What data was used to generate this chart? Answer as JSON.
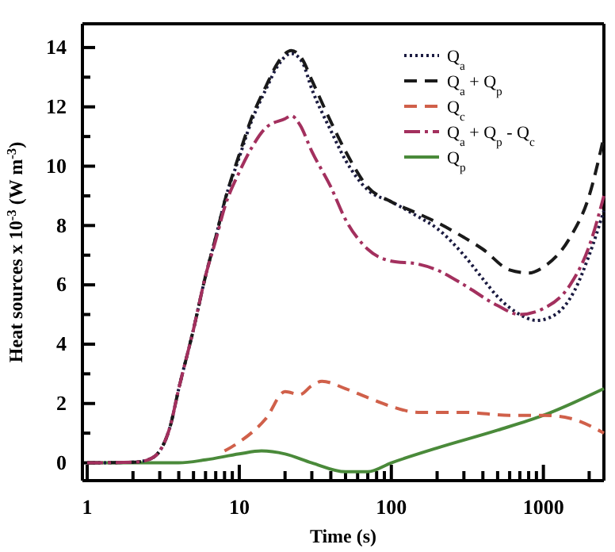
{
  "chart_data": {
    "type": "line",
    "xlabel": "Time (s)",
    "ylabel": "Heat sources x 10$^{-3}$ (W m$^{-3}$)",
    "log": "x",
    "legend": "top right",
    "grid": false,
    "xlim": [
      0.93,
      2500
    ],
    "ylim": [
      -0.6,
      14.8
    ],
    "xticks": [
      1,
      {
        "value": 2,
        "label": null
      },
      {
        "value": 3,
        "label": null
      },
      {
        "value": 4,
        "label": null
      },
      {
        "value": 5,
        "label": null
      },
      {
        "value": 6,
        "label": null
      },
      {
        "value": 7,
        "label": null
      },
      {
        "value": 8,
        "label": null
      },
      {
        "value": 9,
        "label": null
      },
      10,
      {
        "value": 20,
        "label": null
      },
      {
        "value": 30,
        "label": null
      },
      {
        "value": 40,
        "label": null
      },
      {
        "value": 50,
        "label": null
      },
      {
        "value": 60,
        "label": null
      },
      {
        "value": 70,
        "label": null
      },
      {
        "value": 80,
        "label": null
      },
      {
        "value": 90,
        "label": null
      },
      100,
      {
        "value": 200,
        "label": null
      },
      {
        "value": 300,
        "label": null
      },
      {
        "value": 400,
        "label": null
      },
      {
        "value": 500,
        "label": null
      },
      {
        "value": 600,
        "label": null
      },
      {
        "value": 700,
        "label": null
      },
      {
        "value": 800,
        "label": null
      },
      {
        "value": 900,
        "label": null
      },
      1000,
      {
        "value": 2000,
        "label": null
      }
    ],
    "yticks": [
      0,
      {
        "value": 1,
        "label": null
      },
      2,
      {
        "value": 3,
        "label": null
      },
      4,
      {
        "value": 5,
        "label": null
      },
      6,
      {
        "value": 7,
        "label": null
      },
      8,
      {
        "value": 9,
        "label": null
      },
      10,
      {
        "value": 11,
        "label": null
      },
      12,
      {
        "value": 13,
        "label": null
      },
      14
    ],
    "series": [
      {
        "name": "Q$_{a}$",
        "color": "#1a1a40",
        "line_style": "dotted",
        "x": [
          1,
          2,
          2.5,
          3,
          3.5,
          4,
          5,
          6,
          7,
          8,
          10,
          12,
          15,
          18,
          22,
          26,
          30,
          40,
          50,
          70,
          100,
          150,
          200,
          300,
          400,
          500,
          700,
          900,
          1200,
          1600,
          2000,
          2500
        ],
        "values": [
          0,
          0.02,
          0.1,
          0.4,
          1.2,
          2.5,
          4.5,
          6.3,
          7.6,
          8.8,
          10.3,
          11.5,
          12.6,
          13.4,
          13.8,
          13.5,
          12.6,
          11.2,
          10.2,
          9.2,
          8.8,
          8.3,
          7.9,
          7.0,
          6.2,
          5.6,
          5.0,
          4.8,
          5.0,
          5.8,
          7.0,
          8.5
        ]
      },
      {
        "name": "Q$_{a}$ + Q$_{p}$",
        "color": "#1a1a1a",
        "line_style": "dashed",
        "x": [
          1,
          2,
          2.5,
          3,
          3.5,
          4,
          5,
          6,
          7,
          8,
          10,
          12,
          15,
          18,
          22,
          26,
          30,
          40,
          50,
          70,
          100,
          150,
          200,
          300,
          400,
          600,
          800,
          1000,
          1500,
          2000,
          2500
        ],
        "values": [
          0,
          0.02,
          0.1,
          0.4,
          1.2,
          2.5,
          4.5,
          6.3,
          7.6,
          8.8,
          10.4,
          11.6,
          12.7,
          13.5,
          13.9,
          13.6,
          12.9,
          11.5,
          10.5,
          9.3,
          8.8,
          8.4,
          8.1,
          7.6,
          7.2,
          6.5,
          6.4,
          6.6,
          7.6,
          9.0,
          11.0
        ]
      },
      {
        "name": "Q$_{c}$",
        "color": "#d0604a",
        "line_style": "dashed",
        "x": [
          8,
          10,
          15,
          20,
          25,
          30,
          35,
          50,
          70,
          100,
          150,
          300,
          600,
          1000,
          1500,
          2500
        ],
        "values": [
          0.4,
          0.7,
          1.5,
          2.4,
          2.3,
          2.6,
          2.75,
          2.5,
          2.2,
          1.9,
          1.7,
          1.7,
          1.6,
          1.6,
          1.5,
          1.0
        ]
      },
      {
        "name": "Q$_{a}$ + Q$_{p}$ - Q$_{c}$",
        "color": "#a3305e",
        "line_style": "dashdot",
        "x": [
          1,
          2,
          2.5,
          3,
          3.5,
          4,
          5,
          6,
          7,
          8,
          10,
          12,
          15,
          20,
          22,
          25,
          30,
          40,
          50,
          70,
          100,
          150,
          200,
          300,
          500,
          700,
          1000,
          1500,
          2000,
          2500
        ],
        "values": [
          0,
          0.02,
          0.1,
          0.4,
          1.2,
          2.5,
          4.5,
          6.3,
          7.5,
          8.6,
          9.8,
          10.6,
          11.3,
          11.6,
          11.7,
          11.4,
          10.5,
          9.3,
          8.2,
          7.2,
          6.8,
          6.7,
          6.5,
          6.0,
          5.3,
          5.0,
          5.2,
          6.0,
          7.3,
          9.0
        ]
      },
      {
        "name": "Q$_{p}$",
        "color": "#4a8a3a",
        "line_style": "solid",
        "x": [
          1,
          4,
          6,
          10,
          14,
          20,
          30,
          50,
          70,
          100,
          200,
          500,
          1000,
          2500
        ],
        "values": [
          0,
          0,
          0.1,
          0.3,
          0.4,
          0.3,
          0.0,
          -0.3,
          -0.3,
          0.0,
          0.5,
          1.1,
          1.6,
          2.5
        ]
      }
    ]
  }
}
